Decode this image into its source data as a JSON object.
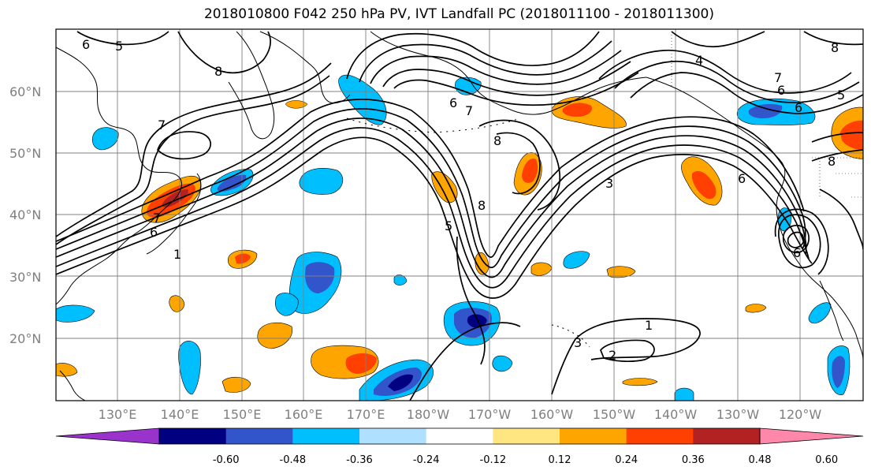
{
  "title": "2018010800 F042 250 hPa PV, IVT Landfall PC (2018011100 - 2018011300)",
  "lat_ticks": [
    "60°N",
    "50°N",
    "40°N",
    "30°N",
    "20°N"
  ],
  "lon_ticks": [
    "130°E",
    "140°E",
    "150°E",
    "160°E",
    "170°E",
    "180°W",
    "170°W",
    "160°W",
    "150°W",
    "140°W",
    "130°W",
    "120°W"
  ],
  "colorbar": {
    "colors": [
      "#9933cc",
      "#000080",
      "#3355cc",
      "#00bfff",
      "#b0e0ff",
      "#ffffff",
      "#ffe680",
      "#ffa500",
      "#ff4000",
      "#b22222",
      "#ff88aa"
    ],
    "labels": [
      "-0.60",
      "-0.48",
      "-0.36",
      "-0.24",
      "-0.12",
      "0.12",
      "0.24",
      "0.36",
      "0.48",
      "0.60"
    ]
  },
  "contour_labels": [
    "6",
    "5",
    "8",
    "7",
    "6",
    "7",
    "8",
    "4",
    "7",
    "6",
    "6",
    "8",
    "5",
    "7",
    "6",
    "1",
    "8",
    "5",
    "1",
    "2",
    "6",
    "8",
    "3",
    "6",
    "3"
  ],
  "colors": {
    "coast": "#000000",
    "grid": "#808080",
    "contour": "#000000"
  }
}
